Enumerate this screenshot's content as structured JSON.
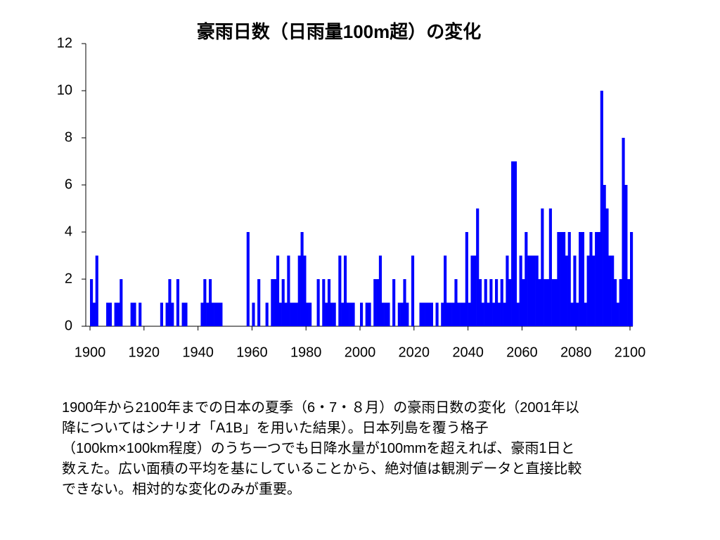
{
  "chart_data": {
    "type": "bar",
    "title": "豪雨日数（日雨量100m超）の変化",
    "color": "#0000ff",
    "x": [
      1900,
      1901,
      1902,
      1903,
      1904,
      1905,
      1906,
      1907,
      1908,
      1909,
      1910,
      1911,
      1912,
      1913,
      1914,
      1915,
      1916,
      1917,
      1918,
      1919,
      1920,
      1921,
      1922,
      1923,
      1924,
      1925,
      1926,
      1927,
      1928,
      1929,
      1930,
      1931,
      1932,
      1933,
      1934,
      1935,
      1936,
      1937,
      1938,
      1939,
      1940,
      1941,
      1942,
      1943,
      1944,
      1945,
      1946,
      1947,
      1948,
      1949,
      1950,
      1951,
      1952,
      1953,
      1954,
      1955,
      1956,
      1957,
      1958,
      1959,
      1960,
      1961,
      1962,
      1963,
      1964,
      1965,
      1966,
      1967,
      1968,
      1969,
      1970,
      1971,
      1972,
      1973,
      1974,
      1975,
      1976,
      1977,
      1978,
      1979,
      1980,
      1981,
      1982,
      1983,
      1984,
      1985,
      1986,
      1987,
      1988,
      1989,
      1990,
      1991,
      1992,
      1993,
      1994,
      1995,
      1996,
      1997,
      1998,
      1999,
      2000,
      2001,
      2002,
      2003,
      2004,
      2005,
      2006,
      2007,
      2008,
      2009,
      2010,
      2011,
      2012,
      2013,
      2014,
      2015,
      2016,
      2017,
      2018,
      2019,
      2020,
      2021,
      2022,
      2023,
      2024,
      2025,
      2026,
      2027,
      2028,
      2029,
      2030,
      2031,
      2032,
      2033,
      2034,
      2035,
      2036,
      2037,
      2038,
      2039,
      2040,
      2041,
      2042,
      2043,
      2044,
      2045,
      2046,
      2047,
      2048,
      2049,
      2050,
      2051,
      2052,
      2053,
      2054,
      2055,
      2056,
      2057,
      2058,
      2059,
      2060,
      2061,
      2062,
      2063,
      2064,
      2065,
      2066,
      2067,
      2068,
      2069,
      2070,
      2071,
      2072,
      2073,
      2074,
      2075,
      2076,
      2077,
      2078,
      2079,
      2080,
      2081,
      2082,
      2083,
      2084,
      2085,
      2086,
      2087,
      2088,
      2089,
      2090,
      2091,
      2092,
      2093,
      2094,
      2095,
      2096,
      2097,
      2098,
      2099,
      2100
    ],
    "values": [
      2,
      1,
      3,
      0,
      0,
      0,
      1,
      1,
      0,
      1,
      1,
      2,
      0,
      0,
      0,
      1,
      1,
      0,
      1,
      0,
      0,
      0,
      0,
      0,
      0,
      0,
      1,
      0,
      1,
      2,
      1,
      0,
      2,
      0,
      1,
      1,
      0,
      0,
      0,
      0,
      0,
      1,
      2,
      1,
      2,
      1,
      1,
      1,
      1,
      0,
      0,
      0,
      0,
      0,
      0,
      0,
      0,
      0,
      4,
      0,
      1,
      0,
      2,
      0,
      0,
      1,
      0,
      2,
      2,
      3,
      1,
      2,
      1,
      3,
      1,
      1,
      1,
      3,
      4,
      3,
      1,
      1,
      0,
      0,
      2,
      0,
      2,
      1,
      2,
      1,
      1,
      0,
      3,
      1,
      3,
      1,
      1,
      1,
      0,
      0,
      1,
      0,
      1,
      1,
      0,
      2,
      2,
      3,
      1,
      1,
      1,
      0,
      2,
      0,
      1,
      1,
      2,
      1,
      0,
      3,
      0,
      0,
      1,
      1,
      1,
      1,
      1,
      0,
      1,
      0,
      1,
      3,
      1,
      1,
      1,
      2,
      1,
      1,
      1,
      4,
      1,
      3,
      3,
      5,
      2,
      1,
      2,
      1,
      2,
      1,
      2,
      1,
      2,
      1,
      3,
      2,
      7,
      7,
      1,
      3,
      2,
      4,
      3,
      3,
      3,
      3,
      2,
      5,
      2,
      2,
      5,
      2,
      2,
      4,
      4,
      4,
      3,
      4,
      1,
      3,
      1,
      4,
      4,
      1,
      3,
      4,
      3,
      4,
      4,
      10,
      6,
      5,
      3,
      3,
      2,
      1,
      2,
      8,
      6,
      2,
      4
    ],
    "xlim": [
      1900,
      2100
    ],
    "xticks": [
      1900,
      1920,
      1940,
      1960,
      1980,
      2000,
      2020,
      2040,
      2060,
      2080,
      2100
    ],
    "ylim": [
      0,
      12
    ],
    "yticks": [
      0,
      2,
      4,
      6,
      8,
      10,
      12
    ]
  },
  "caption": [
    "1900年から2100年までの日本の夏季（6・7・８月）の豪雨日数の変化（2001年以",
    "降についてはシナリオ「A1B」を用いた結果）。日本列島を覆う格子",
    "（100km×100km程度）のうち一つでも日降水量が100mmを超えれば、豪雨1日と",
    "数えた。広い面積の平均を基にしていることから、絶対値は観測データと直接比較",
    "できない。相対的な変化のみが重要。"
  ]
}
